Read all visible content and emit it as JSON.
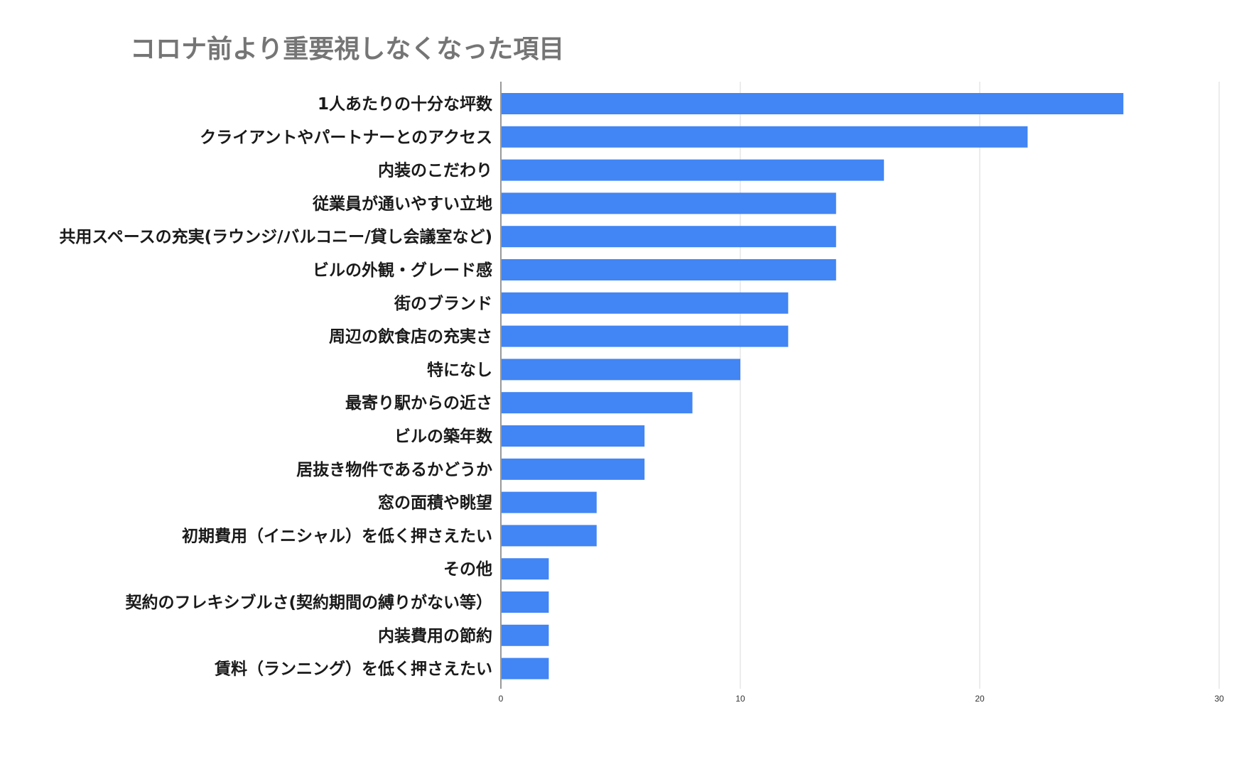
{
  "chart_data": {
    "type": "bar",
    "orientation": "horizontal",
    "title": "コロナ前より重要視しなくなった項目",
    "xlabel": "",
    "ylabel": "",
    "xlim": [
      0,
      30
    ],
    "ticks": [
      "0",
      "10",
      "20",
      "30"
    ],
    "grid": true,
    "legend": "none",
    "bar_color": "#4285f4",
    "categories": [
      "1人あたりの十分な坪数",
      "クライアントやパートナーとのアクセス",
      "内装のこだわり",
      "従業員が通いやすい立地",
      "共用スペースの充実(ラウンジ/バルコニー/貸し会議室など)",
      "ビルの外観・グレード感",
      "街のブランド",
      "周辺の飲食店の充実さ",
      "特になし",
      "最寄り駅からの近さ",
      "ビルの築年数",
      "居抜き物件であるかどうか",
      "窓の面積や眺望",
      "初期費用（イニシャル）を低く押さえたい",
      "その他",
      "契約のフレキシブルさ(契約期間の縛りがない等）",
      "内装費用の節約",
      "賃料（ランニング）を低く押さえたい"
    ],
    "values": [
      26,
      22,
      16,
      14,
      14,
      14,
      12,
      12,
      10,
      8,
      6,
      6,
      4,
      4,
      2,
      2,
      2,
      2
    ]
  }
}
